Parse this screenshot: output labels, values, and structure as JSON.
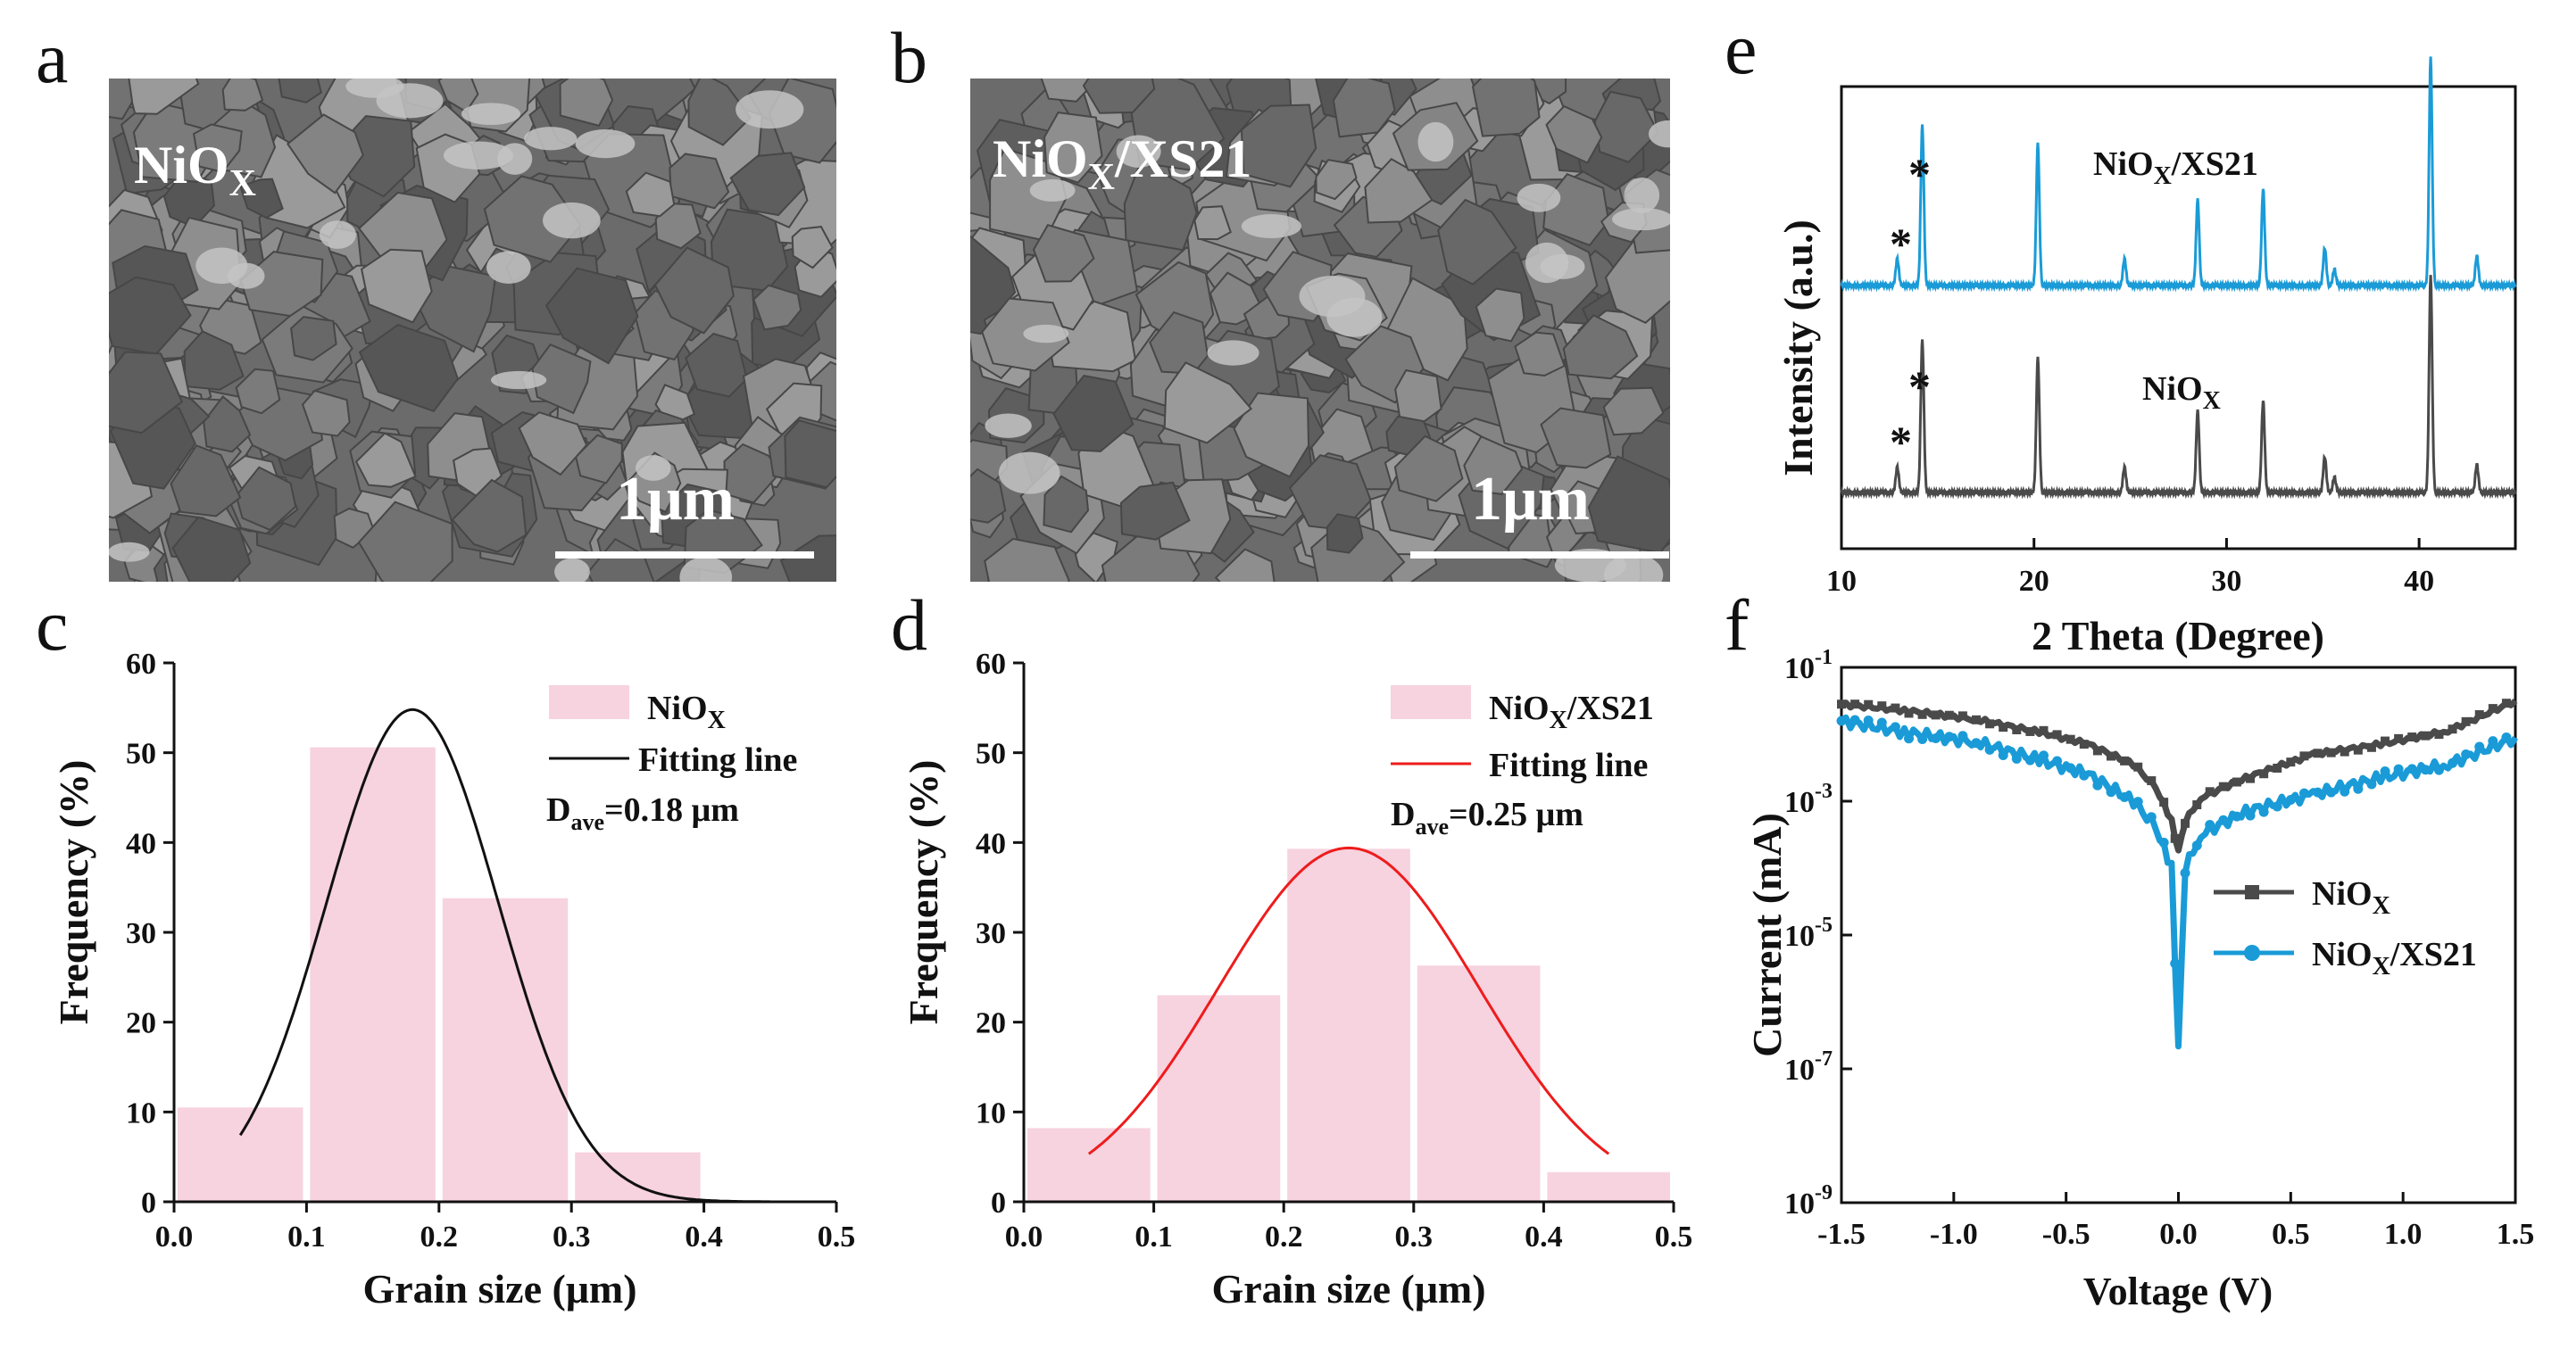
{
  "panels": [
    "a",
    "b",
    "c",
    "d",
    "e",
    "f"
  ],
  "sem": [
    {
      "label_main": "NiO",
      "label_sub": "X",
      "label_rest": "",
      "scale_bar": "1μm"
    },
    {
      "label_main": "NiO",
      "label_sub": "X",
      "label_rest": "/XS21",
      "scale_bar": "1μm"
    }
  ],
  "colors": {
    "bar": "#f7d2df",
    "fit_c": "#111111",
    "fit_d": "#ee1c1c",
    "nio": "#4a4a4a",
    "xs21": "#1a9bd7",
    "sem_dark": "#4b4b4b",
    "sem_light": "#a7a7a7"
  },
  "chart_data": [
    {
      "id": "c",
      "type": "bar",
      "bins": [
        [
          0.0,
          0.1
        ],
        [
          0.1,
          0.2
        ],
        [
          0.2,
          0.3
        ],
        [
          0.3,
          0.4
        ]
      ],
      "values": [
        10.5,
        50.6,
        33.8,
        5.5
      ],
      "fit": {
        "mean": 0.18,
        "sigma": 0.065,
        "peak": 54.8,
        "x_range": [
          0.05,
          0.45
        ]
      },
      "xlabel": "Grain size (μm)",
      "ylabel": "Frequency (%)",
      "xlim": [
        0,
        0.5
      ],
      "ylim": [
        0,
        60
      ],
      "xticks": [
        "0.0",
        "0.1",
        "0.2",
        "0.3",
        "0.4",
        "0.5"
      ],
      "yticks": [
        "0",
        "10",
        "20",
        "30",
        "40",
        "50",
        "60"
      ],
      "legend": {
        "bar_main": "NiO",
        "bar_sub": "X",
        "bar_rest": "",
        "fit": "Fitting line",
        "dave_main": "D",
        "dave_sub": "ave",
        "dave_rest": "=0.18 μm"
      }
    },
    {
      "id": "d",
      "type": "bar",
      "bins": [
        [
          0.0,
          0.1
        ],
        [
          0.1,
          0.2
        ],
        [
          0.2,
          0.3
        ],
        [
          0.3,
          0.4
        ],
        [
          0.4,
          0.5
        ]
      ],
      "values": [
        8.2,
        23.0,
        39.3,
        26.3,
        3.3
      ],
      "fit": {
        "mean": 0.25,
        "sigma": 0.1,
        "peak": 39.4,
        "x_range": [
          0.05,
          0.45
        ]
      },
      "xlabel": "Grain size (μm)",
      "ylabel": "Frequency (%)",
      "xlim": [
        0,
        0.5
      ],
      "ylim": [
        0,
        60
      ],
      "xticks": [
        "0.0",
        "0.1",
        "0.2",
        "0.3",
        "0.4",
        "0.5"
      ],
      "yticks": [
        "0",
        "10",
        "20",
        "30",
        "40",
        "50",
        "60"
      ],
      "legend": {
        "bar_main": "NiO",
        "bar_sub": "X",
        "bar_rest": "/XS21",
        "fit": "Fitting line",
        "dave_main": "D",
        "dave_sub": "ave",
        "dave_rest": "=0.25 μm"
      }
    },
    {
      "id": "e",
      "type": "line",
      "xlabel": "2 Theta (Degree)",
      "ylabel": "Intensity (a.u.)",
      "xlim": [
        10,
        45
      ],
      "xticks": [
        "10",
        "20",
        "30",
        "40"
      ],
      "peaks": [
        {
          "x": 12.9,
          "h": 0.1
        },
        {
          "x": 14.2,
          "h": 0.6
        },
        {
          "x": 20.2,
          "h": 0.53
        },
        {
          "x": 24.7,
          "h": 0.1
        },
        {
          "x": 28.5,
          "h": 0.32
        },
        {
          "x": 31.9,
          "h": 0.36
        },
        {
          "x": 35.1,
          "h": 0.14
        },
        {
          "x": 35.6,
          "h": 0.06
        },
        {
          "x": 40.6,
          "h": 0.85
        },
        {
          "x": 43.0,
          "h": 0.11
        }
      ],
      "series": [
        {
          "name_main": "NiO",
          "name_sub": "X",
          "name_rest": "/XS21",
          "color": "#1a9bd7",
          "offset": 1,
          "scale": 1.0,
          "star_low": "*",
          "star_high": "*"
        },
        {
          "name_main": "NiO",
          "name_sub": "X",
          "name_rest": "",
          "color": "#4a4a4a",
          "offset": 0,
          "scale": 0.95,
          "star_low": "*",
          "star_high": "*"
        }
      ]
    },
    {
      "id": "f",
      "type": "line",
      "xlabel": "Voltage (V)",
      "ylabel": "Current (mA)",
      "xlim": [
        -1.5,
        1.5
      ],
      "ylim_log10": [
        -9,
        -1
      ],
      "xticks": [
        "-1.5",
        "-1.0",
        "-0.5",
        "0.0",
        "0.5",
        "1.0",
        "1.5"
      ],
      "yticks": [
        {
          "base": "10",
          "exp": "-1"
        },
        {
          "base": "10",
          "exp": "-3"
        },
        {
          "base": "10",
          "exp": "-5"
        },
        {
          "base": "10",
          "exp": "-7"
        },
        {
          "base": "10",
          "exp": "-9"
        }
      ],
      "series": [
        {
          "name_main": "NiO",
          "name_sub": "X",
          "name_rest": "",
          "color": "#4a4a4a",
          "marker": "square",
          "points": [
            [
              -1.5,
              -1.55
            ],
            [
              -1.2,
              -1.65
            ],
            [
              -0.9,
              -1.78
            ],
            [
              -0.6,
              -1.98
            ],
            [
              -0.4,
              -2.15
            ],
            [
              -0.2,
              -2.45
            ],
            [
              -0.1,
              -2.8
            ],
            [
              -0.03,
              -3.3
            ],
            [
              0.0,
              -3.75
            ],
            [
              0.03,
              -3.3
            ],
            [
              0.1,
              -2.95
            ],
            [
              0.3,
              -2.65
            ],
            [
              0.6,
              -2.3
            ],
            [
              0.9,
              -2.15
            ],
            [
              1.2,
              -1.95
            ],
            [
              1.5,
              -1.5
            ]
          ]
        },
        {
          "name_main": "NiO",
          "name_sub": "X",
          "name_rest": "/XS21",
          "color": "#1a9bd7",
          "marker": "circle",
          "points": [
            [
              -1.5,
              -1.8
            ],
            [
              -1.2,
              -1.98
            ],
            [
              -0.9,
              -2.12
            ],
            [
              -0.6,
              -2.4
            ],
            [
              -0.4,
              -2.6
            ],
            [
              -0.2,
              -3.0
            ],
            [
              -0.1,
              -3.4
            ],
            [
              -0.03,
              -4.0
            ],
            [
              0.0,
              -6.7
            ],
            [
              0.03,
              -4.0
            ],
            [
              0.1,
              -3.5
            ],
            [
              0.3,
              -3.15
            ],
            [
              0.6,
              -2.9
            ],
            [
              0.9,
              -2.65
            ],
            [
              1.2,
              -2.45
            ],
            [
              1.5,
              -2.05
            ]
          ]
        }
      ]
    }
  ]
}
